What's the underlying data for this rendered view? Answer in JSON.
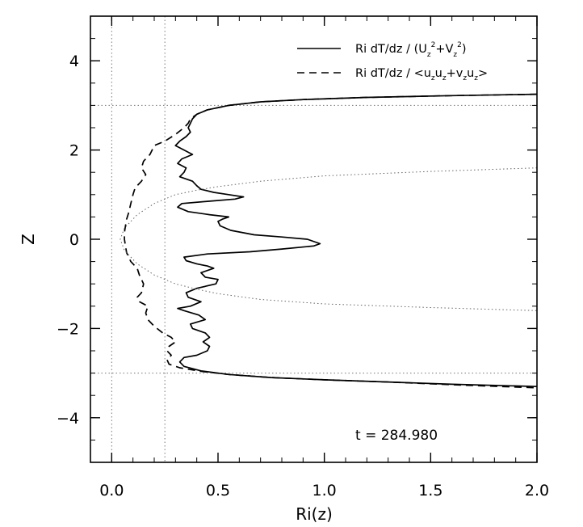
{
  "chart_data": {
    "type": "line",
    "title": "",
    "xlabel": "Ri(z)",
    "ylabel": "Z",
    "xlim": [
      -0.1,
      2.0
    ],
    "ylim": [
      -5.0,
      5.0
    ],
    "x_ticks": [
      0.0,
      0.5,
      1.0,
      1.5,
      2.0
    ],
    "x_tick_labels": [
      "0.0",
      "0.5",
      "1.0",
      "1.5",
      "2.0"
    ],
    "y_ticks": [
      -4,
      -2,
      0,
      2,
      4
    ],
    "y_tick_labels": [
      "−4",
      "−2",
      "0",
      "2",
      "4"
    ],
    "legend_position": "top-right",
    "annotation": {
      "label": "t  =  284.980"
    },
    "reference_lines": {
      "vertical": [
        0.0,
        0.25
      ],
      "horizontal": [
        -3.0,
        3.0
      ]
    },
    "series": [
      {
        "name": "Ri dT/dz / (U_z²+V_z²)",
        "legend_label": {
          "main": "Ri  dT/dz  /  (U",
          "s1": "z",
          "p1": "2",
          "mid": "+V",
          "s2": "z",
          "p2": "2",
          "end": ")"
        },
        "style": "solid",
        "points": [
          [
            2.0,
            3.25
          ],
          [
            1.6,
            3.22
          ],
          [
            1.2,
            3.18
          ],
          [
            0.9,
            3.13
          ],
          [
            0.7,
            3.08
          ],
          [
            0.55,
            3.0
          ],
          [
            0.45,
            2.9
          ],
          [
            0.4,
            2.8
          ],
          [
            0.38,
            2.7
          ],
          [
            0.37,
            2.6
          ],
          [
            0.36,
            2.5
          ],
          [
            0.37,
            2.4
          ],
          [
            0.35,
            2.3
          ],
          [
            0.32,
            2.2
          ],
          [
            0.3,
            2.1
          ],
          [
            0.34,
            2.0
          ],
          [
            0.38,
            1.9
          ],
          [
            0.33,
            1.8
          ],
          [
            0.31,
            1.7
          ],
          [
            0.35,
            1.6
          ],
          [
            0.34,
            1.5
          ],
          [
            0.32,
            1.4
          ],
          [
            0.38,
            1.3
          ],
          [
            0.4,
            1.2
          ],
          [
            0.42,
            1.12
          ],
          [
            0.48,
            1.05
          ],
          [
            0.55,
            1.0
          ],
          [
            0.62,
            0.95
          ],
          [
            0.58,
            0.9
          ],
          [
            0.45,
            0.85
          ],
          [
            0.33,
            0.8
          ],
          [
            0.31,
            0.72
          ],
          [
            0.36,
            0.62
          ],
          [
            0.46,
            0.55
          ],
          [
            0.55,
            0.5
          ],
          [
            0.52,
            0.45
          ],
          [
            0.5,
            0.4
          ],
          [
            0.51,
            0.3
          ],
          [
            0.56,
            0.2
          ],
          [
            0.67,
            0.1
          ],
          [
            0.8,
            0.05
          ],
          [
            0.92,
            0.0
          ],
          [
            0.98,
            -0.1
          ],
          [
            0.95,
            -0.15
          ],
          [
            0.8,
            -0.22
          ],
          [
            0.65,
            -0.28
          ],
          [
            0.45,
            -0.33
          ],
          [
            0.34,
            -0.4
          ],
          [
            0.35,
            -0.48
          ],
          [
            0.4,
            -0.55
          ],
          [
            0.45,
            -0.6
          ],
          [
            0.48,
            -0.65
          ],
          [
            0.42,
            -0.75
          ],
          [
            0.44,
            -0.85
          ],
          [
            0.5,
            -0.9
          ],
          [
            0.49,
            -1.0
          ],
          [
            0.4,
            -1.1
          ],
          [
            0.35,
            -1.2
          ],
          [
            0.36,
            -1.3
          ],
          [
            0.42,
            -1.4
          ],
          [
            0.37,
            -1.5
          ],
          [
            0.31,
            -1.55
          ],
          [
            0.34,
            -1.6
          ],
          [
            0.41,
            -1.7
          ],
          [
            0.44,
            -1.8
          ],
          [
            0.37,
            -1.9
          ],
          [
            0.38,
            -2.0
          ],
          [
            0.44,
            -2.1
          ],
          [
            0.46,
            -2.2
          ],
          [
            0.43,
            -2.3
          ],
          [
            0.46,
            -2.4
          ],
          [
            0.45,
            -2.5
          ],
          [
            0.4,
            -2.6
          ],
          [
            0.34,
            -2.65
          ],
          [
            0.32,
            -2.75
          ],
          [
            0.34,
            -2.85
          ],
          [
            0.42,
            -2.95
          ],
          [
            0.55,
            -3.03
          ],
          [
            0.75,
            -3.1
          ],
          [
            1.0,
            -3.15
          ],
          [
            1.3,
            -3.2
          ],
          [
            1.6,
            -3.25
          ],
          [
            2.0,
            -3.3
          ]
        ]
      },
      {
        "name": "Ri dT/dz / <u_z u_z+v_z u_z>",
        "legend_label": {
          "main": "Ri  dT/dz  /  <u",
          "a": "z",
          "b": "u",
          "c": "z",
          "d": "+v",
          "e": "z",
          "f": "u",
          "g": "z",
          "end": ">"
        },
        "style": "dashed",
        "points": [
          [
            2.0,
            3.25
          ],
          [
            1.6,
            3.22
          ],
          [
            1.2,
            3.18
          ],
          [
            0.9,
            3.13
          ],
          [
            0.7,
            3.08
          ],
          [
            0.55,
            3.0
          ],
          [
            0.45,
            2.9
          ],
          [
            0.4,
            2.8
          ],
          [
            0.37,
            2.7
          ],
          [
            0.36,
            2.6
          ],
          [
            0.34,
            2.5
          ],
          [
            0.3,
            2.35
          ],
          [
            0.25,
            2.2
          ],
          [
            0.2,
            2.1
          ],
          [
            0.19,
            2.0
          ],
          [
            0.18,
            1.9
          ],
          [
            0.15,
            1.75
          ],
          [
            0.14,
            1.6
          ],
          [
            0.16,
            1.45
          ],
          [
            0.14,
            1.3
          ],
          [
            0.11,
            1.15
          ],
          [
            0.1,
            1.0
          ],
          [
            0.09,
            0.8
          ],
          [
            0.08,
            0.6
          ],
          [
            0.07,
            0.45
          ],
          [
            0.065,
            0.3
          ],
          [
            0.06,
            0.15
          ],
          [
            0.06,
            0.0
          ],
          [
            0.065,
            -0.15
          ],
          [
            0.07,
            -0.3
          ],
          [
            0.09,
            -0.5
          ],
          [
            0.12,
            -0.65
          ],
          [
            0.13,
            -0.8
          ],
          [
            0.15,
            -1.0
          ],
          [
            0.14,
            -1.2
          ],
          [
            0.12,
            -1.3
          ],
          [
            0.13,
            -1.4
          ],
          [
            0.17,
            -1.5
          ],
          [
            0.16,
            -1.65
          ],
          [
            0.17,
            -1.8
          ],
          [
            0.2,
            -1.95
          ],
          [
            0.24,
            -2.1
          ],
          [
            0.28,
            -2.2
          ],
          [
            0.3,
            -2.3
          ],
          [
            0.27,
            -2.4
          ],
          [
            0.26,
            -2.5
          ],
          [
            0.28,
            -2.6
          ],
          [
            0.26,
            -2.7
          ],
          [
            0.27,
            -2.8
          ],
          [
            0.32,
            -2.88
          ],
          [
            0.42,
            -2.96
          ],
          [
            0.55,
            -3.03
          ],
          [
            0.75,
            -3.1
          ],
          [
            1.0,
            -3.15
          ],
          [
            1.3,
            -3.2
          ],
          [
            1.6,
            -3.26
          ],
          [
            2.0,
            -3.33
          ]
        ]
      },
      {
        "name": "reference parabola",
        "style": "dotted",
        "points": [
          [
            2.0,
            1.6
          ],
          [
            1.5,
            1.52
          ],
          [
            1.0,
            1.42
          ],
          [
            0.7,
            1.3
          ],
          [
            0.5,
            1.18
          ],
          [
            0.4,
            1.1
          ],
          [
            0.3,
            1.0
          ],
          [
            0.2,
            0.8
          ],
          [
            0.12,
            0.55
          ],
          [
            0.06,
            0.25
          ],
          [
            0.04,
            0.0
          ],
          [
            0.06,
            -0.25
          ],
          [
            0.12,
            -0.55
          ],
          [
            0.2,
            -0.8
          ],
          [
            0.3,
            -1.0
          ],
          [
            0.4,
            -1.12
          ],
          [
            0.5,
            -1.22
          ],
          [
            0.7,
            -1.35
          ],
          [
            1.0,
            -1.45
          ],
          [
            1.5,
            -1.53
          ],
          [
            2.0,
            -1.6
          ]
        ]
      }
    ]
  }
}
